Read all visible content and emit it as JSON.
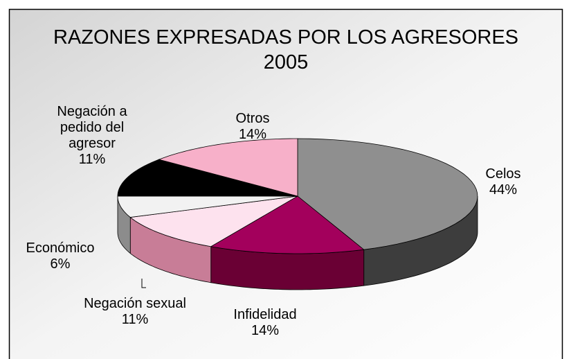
{
  "chart_data": {
    "type": "pie",
    "title": "RAZONES EXPRESADAS POR LOS AGRESORES",
    "subtitle": "2005",
    "categories": [
      "Celos",
      "Infidelidad",
      "Negación sexual",
      "Económico",
      "Negación a pedido del agresor",
      "Otros"
    ],
    "values": [
      44,
      14,
      11,
      6,
      11,
      14
    ],
    "value_labels": [
      "44%",
      "14%",
      "11%",
      "6%",
      "11%",
      "14%"
    ],
    "colors": [
      "#8f8f8f",
      "#a3005c",
      "#fde2ee",
      "#f2f2f2",
      "#000000",
      "#f7b0c9"
    ],
    "side_colors": [
      "#3d3d3d",
      "#6a0034",
      "#c87d97",
      "#8c8c8c",
      "#111111",
      "#c07890"
    ]
  }
}
